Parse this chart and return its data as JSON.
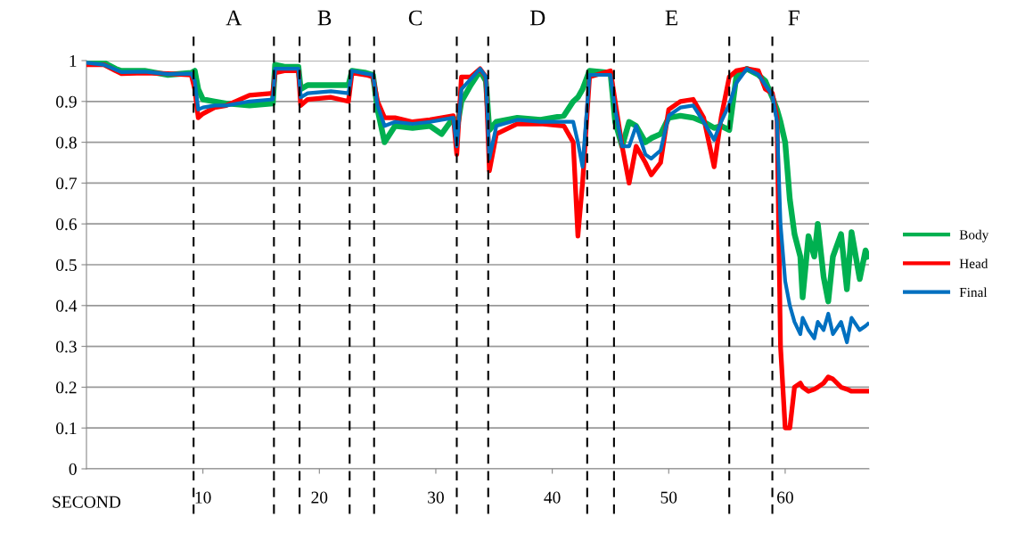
{
  "chart_data": {
    "type": "line",
    "xlabel": "SECOND",
    "x": [
      0,
      1.5,
      2.5,
      3,
      5,
      7,
      9,
      9.3,
      9.6,
      10,
      11,
      12,
      14,
      16,
      16.2,
      17,
      18.2,
      18.4,
      19,
      21,
      22.5,
      22.8,
      24,
      24.6,
      25,
      25.6,
      26.5,
      28,
      29.5,
      30.5,
      31.5,
      31.8,
      32.2,
      33,
      33.8,
      34.3,
      34.6,
      35.2,
      37,
      39,
      41,
      41.8,
      42.2,
      42.6,
      43.2,
      45,
      45.4,
      46,
      46.6,
      47.2,
      48,
      48.5,
      49.3,
      50,
      51,
      52.1,
      53,
      53.9,
      54.5,
      55.2,
      55.8,
      56.7,
      57.7,
      58.3,
      58.9,
      59.3,
      59.6,
      60.0,
      60.4,
      60.8,
      61.3,
      61.5,
      62.0,
      62.5,
      62.8,
      63.3,
      63.7,
      64.1,
      64.8,
      65.3,
      65.7,
      66.4,
      66.9,
      67.1
    ],
    "series": [
      {
        "name": "Body",
        "color": "#00b050",
        "values": [
          0.995,
          0.995,
          0.98,
          0.975,
          0.975,
          0.965,
          0.97,
          0.975,
          0.93,
          0.905,
          0.9,
          0.895,
          0.89,
          0.895,
          0.99,
          0.985,
          0.985,
          0.93,
          0.94,
          0.94,
          0.94,
          0.975,
          0.97,
          0.965,
          0.88,
          0.8,
          0.84,
          0.835,
          0.84,
          0.82,
          0.86,
          0.83,
          0.9,
          0.94,
          0.975,
          0.95,
          0.83,
          0.85,
          0.86,
          0.855,
          0.865,
          0.9,
          0.91,
          0.93,
          0.975,
          0.97,
          0.85,
          0.79,
          0.85,
          0.84,
          0.8,
          0.81,
          0.82,
          0.86,
          0.865,
          0.86,
          0.85,
          0.835,
          0.84,
          0.83,
          0.96,
          0.98,
          0.965,
          0.95,
          0.91,
          0.88,
          0.85,
          0.8,
          0.66,
          0.575,
          0.52,
          0.42,
          0.57,
          0.52,
          0.6,
          0.47,
          0.41,
          0.52,
          0.575,
          0.44,
          0.58,
          0.465,
          0.535,
          0.52
        ]
      },
      {
        "name": "Head",
        "color": "#ff0000",
        "values": [
          0.99,
          0.99,
          0.975,
          0.968,
          0.97,
          0.968,
          0.965,
          0.93,
          0.86,
          0.87,
          0.885,
          0.89,
          0.915,
          0.92,
          0.97,
          0.975,
          0.975,
          0.89,
          0.905,
          0.91,
          0.9,
          0.97,
          0.965,
          0.96,
          0.9,
          0.86,
          0.86,
          0.85,
          0.855,
          0.86,
          0.865,
          0.77,
          0.96,
          0.96,
          0.98,
          0.96,
          0.73,
          0.82,
          0.845,
          0.845,
          0.84,
          0.8,
          0.57,
          0.7,
          0.96,
          0.975,
          0.9,
          0.79,
          0.7,
          0.79,
          0.75,
          0.72,
          0.75,
          0.88,
          0.9,
          0.905,
          0.86,
          0.74,
          0.86,
          0.96,
          0.975,
          0.98,
          0.975,
          0.93,
          0.92,
          0.86,
          0.3,
          0.1,
          0.1,
          0.2,
          0.21,
          0.2,
          0.19,
          0.195,
          0.2,
          0.21,
          0.225,
          0.22,
          0.2,
          0.195,
          0.19,
          0.19,
          0.19,
          0.19
        ]
      },
      {
        "name": "Final",
        "color": "#0070c0",
        "values": [
          0.995,
          0.99,
          0.978,
          0.972,
          0.973,
          0.967,
          0.968,
          0.95,
          0.88,
          0.885,
          0.89,
          0.89,
          0.9,
          0.905,
          0.98,
          0.98,
          0.98,
          0.91,
          0.92,
          0.925,
          0.92,
          0.975,
          0.968,
          0.965,
          0.89,
          0.84,
          0.85,
          0.845,
          0.85,
          0.855,
          0.86,
          0.79,
          0.93,
          0.955,
          0.98,
          0.96,
          0.76,
          0.84,
          0.855,
          0.85,
          0.85,
          0.85,
          0.8,
          0.74,
          0.965,
          0.965,
          0.88,
          0.79,
          0.79,
          0.84,
          0.77,
          0.76,
          0.78,
          0.865,
          0.885,
          0.89,
          0.85,
          0.806,
          0.85,
          0.893,
          0.945,
          0.98,
          0.966,
          0.94,
          0.915,
          0.85,
          0.6,
          0.46,
          0.4,
          0.36,
          0.33,
          0.37,
          0.34,
          0.32,
          0.36,
          0.34,
          0.38,
          0.33,
          0.36,
          0.31,
          0.37,
          0.34,
          0.35,
          0.355
        ]
      }
    ],
    "xlim": [
      0,
      67.2
    ],
    "xticks": [
      10,
      20,
      30,
      40,
      50,
      60
    ],
    "ylim": [
      0,
      1
    ],
    "yticks": [
      0,
      0.1,
      0.2,
      0.3,
      0.4,
      0.5,
      0.6,
      0.7,
      0.8,
      0.9,
      1
    ],
    "grid": "y",
    "legend": "right",
    "line_style": "solid",
    "marker": "none",
    "ref_lines": [
      {
        "axis": "x",
        "value": 9.2,
        "color": "#000000",
        "line_style": "dashed"
      },
      {
        "axis": "x",
        "value": 16.1,
        "color": "#000000",
        "line_style": "dashed"
      },
      {
        "axis": "x",
        "value": 18.3,
        "color": "#000000",
        "line_style": "dashed"
      },
      {
        "axis": "x",
        "value": 22.6,
        "color": "#000000",
        "line_style": "dashed"
      },
      {
        "axis": "x",
        "value": 24.7,
        "color": "#000000",
        "line_style": "dashed"
      },
      {
        "axis": "x",
        "value": 31.8,
        "color": "#000000",
        "line_style": "dashed"
      },
      {
        "axis": "x",
        "value": 34.5,
        "color": "#000000",
        "line_style": "dashed"
      },
      {
        "axis": "x",
        "value": 43.0,
        "color": "#000000",
        "line_style": "dashed"
      },
      {
        "axis": "x",
        "value": 45.3,
        "color": "#000000",
        "line_style": "dashed"
      },
      {
        "axis": "x",
        "value": 55.2,
        "color": "#000000",
        "line_style": "dashed"
      },
      {
        "axis": "x",
        "value": 58.9,
        "color": "#000000",
        "line_style": "dashed"
      }
    ],
    "annotations": [
      "A",
      "B",
      "C",
      "D",
      "E",
      "F"
    ]
  }
}
